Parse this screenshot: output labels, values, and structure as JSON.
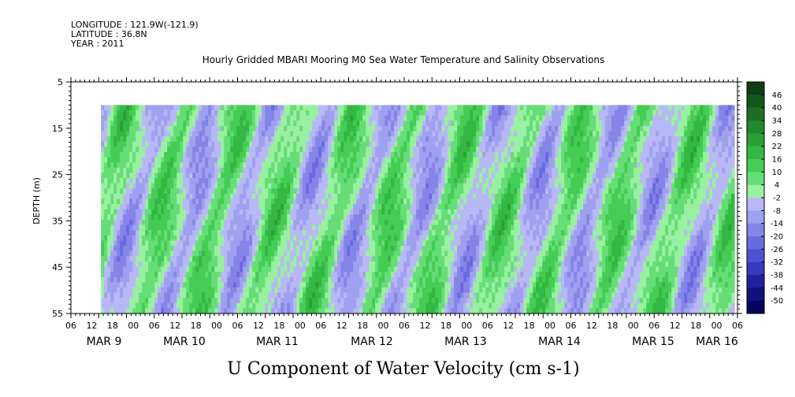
{
  "header": {
    "longitude": "LONGITUDE : 121.9W(-121.9)",
    "latitude": "LATITUDE : 36.8N",
    "year": "YEAR : 2011"
  },
  "chart_data": {
    "type": "heatmap",
    "title": "Hourly Gridded MBARI Mooring M0 Sea Water Temperature and Salinity Observations",
    "caption": "U Component of Water Velocity (cm s-1)",
    "ylabel": "DEPTH (m)",
    "y_ticks": [
      5,
      15,
      25,
      35,
      45,
      55
    ],
    "y_range": [
      5,
      55
    ],
    "y_inverted": true,
    "data_depth_range": [
      10,
      55
    ],
    "x_range_hours": [
      0,
      144
    ],
    "x_start": "MAR 9 06",
    "x_data_start_hour": 6.5,
    "x_hour_labels": [
      "06",
      "12",
      "18",
      "00",
      "06",
      "12",
      "18",
      "00",
      "06",
      "12",
      "18",
      "00",
      "06",
      "12",
      "18",
      "00",
      "06",
      "12",
      "18",
      "00",
      "06",
      "12",
      "18",
      "00",
      "06",
      "12",
      "18",
      "00",
      "06",
      "12",
      "18",
      "00",
      "06"
    ],
    "date_labels": [
      {
        "label": "MAR  9",
        "hour": 18
      },
      {
        "label": "MAR 10",
        "hour": 42
      },
      {
        "label": "MAR 11",
        "hour": 66
      },
      {
        "label": "MAR 12",
        "hour": 90
      },
      {
        "label": "MAR 13",
        "hour": 114
      },
      {
        "label": "MAR 14",
        "hour": 138
      },
      {
        "label": "MAR 15",
        "hour": 162
      },
      {
        "label": "MAR 16",
        "hour": 178
      }
    ],
    "colorbar": {
      "levels": [
        "46",
        "40",
        "34",
        "28",
        "22",
        "16",
        "10",
        "4",
        "-2",
        "-8",
        "-14",
        "-20",
        "-26",
        "-32",
        "-38",
        "-44",
        "-50"
      ],
      "colors_top_to_bottom": [
        "#0f3d14",
        "#15561c",
        "#1c6f25",
        "#22882e",
        "#2aa037",
        "#33b843",
        "#44cc55",
        "#66dd77",
        "#99f0a0",
        "#b8b8f6",
        "#a0a0f0",
        "#8585e8",
        "#6a6ae0",
        "#5050d4",
        "#3838c0",
        "#2020a0",
        "#101080",
        "#050560"
      ]
    },
    "legend_position": "right",
    "grid": false
  }
}
